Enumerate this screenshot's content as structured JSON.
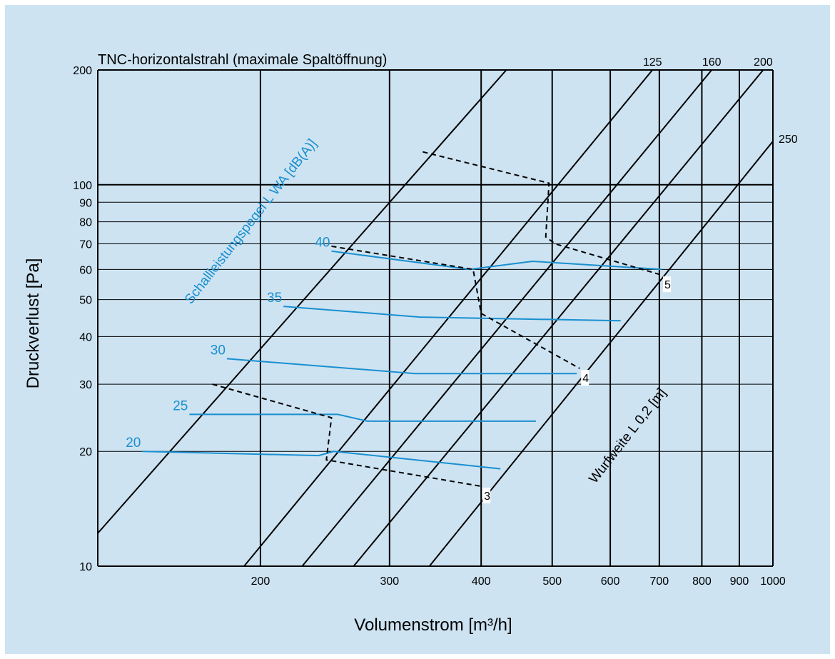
{
  "colors": {
    "background": "#cde3f2",
    "grid": "#000000",
    "sound_lines": "#1a8fcf",
    "sound_labels": "#1a8fcf",
    "text": "#000000"
  },
  "chart_data": {
    "type": "line",
    "title": "TNC-horizontalstrahl (maximale Spaltöffnung)",
    "xlabel": "Volumenstrom [m³/h]",
    "ylabel": "Druckverlust [Pa]",
    "x_scale": "log",
    "y_scale": "log",
    "xlim": [
      120,
      1000
    ],
    "ylim": [
      10,
      200
    ],
    "grid": true,
    "x_ticks": [
      200,
      300,
      400,
      500,
      600,
      700,
      800,
      900,
      1000
    ],
    "x_tick_labels": [
      "200",
      "300",
      "400",
      "500",
      "600",
      "700",
      "800",
      "900",
      "1000"
    ],
    "y_ticks": [
      10,
      20,
      30,
      40,
      50,
      60,
      70,
      80,
      90,
      100,
      200
    ],
    "y_tick_labels": [
      "10",
      "20",
      "30",
      "40",
      "50",
      "60",
      "70",
      "80",
      "90",
      "100",
      "200"
    ],
    "sound_power_axis_label": "Schallleistungspegel L WA [dB(A)]",
    "throw_distance_axis_label": "Wurfweite L 0,2 [m]",
    "size_lines": [
      {
        "label": "",
        "points": [
          [
            120,
            12.2
          ],
          [
            433,
            200
          ]
        ]
      },
      {
        "label": "125",
        "points": [
          [
            190,
            10
          ],
          [
            685,
            200
          ]
        ]
      },
      {
        "label": "160",
        "points": [
          [
            228,
            10
          ],
          [
            825,
            200
          ]
        ]
      },
      {
        "label": "200",
        "points": [
          [
            268,
            10
          ],
          [
            970,
            200
          ]
        ]
      },
      {
        "label": "250",
        "points": [
          [
            340,
            10
          ],
          [
            1000,
            130
          ]
        ]
      }
    ],
    "sound_levels": [
      {
        "label": "40",
        "points": [
          [
            250,
            67
          ],
          [
            386,
            60
          ],
          [
            470,
            63
          ],
          [
            705,
            60
          ]
        ]
      },
      {
        "label": "35",
        "points": [
          [
            215,
            48
          ],
          [
            330,
            45
          ],
          [
            620,
            44
          ]
        ]
      },
      {
        "label": "30",
        "points": [
          [
            180,
            35
          ],
          [
            325,
            32
          ],
          [
            540,
            32
          ]
        ]
      },
      {
        "label": "25",
        "points": [
          [
            160,
            25
          ],
          [
            255,
            25
          ],
          [
            280,
            24
          ],
          [
            475,
            24
          ]
        ]
      },
      {
        "label": "20",
        "points": [
          [
            138,
            20
          ],
          [
            240,
            19.5
          ],
          [
            252,
            20
          ],
          [
            425,
            18
          ]
        ]
      }
    ],
    "throw_distances": [
      {
        "label": "3",
        "points": [
          [
            172,
            30
          ],
          [
            250,
            24.5
          ],
          [
            246,
            19
          ],
          [
            400,
            16.2
          ]
        ]
      },
      {
        "label": "4",
        "points": [
          [
            250,
            69
          ],
          [
            390,
            60
          ],
          [
            400,
            46
          ],
          [
            545,
            33
          ]
        ]
      },
      {
        "label": "5",
        "points": [
          [
            333,
            122
          ],
          [
            495,
            101
          ],
          [
            490,
            73
          ],
          [
            505,
            70
          ],
          [
            705,
            58
          ]
        ]
      }
    ]
  }
}
